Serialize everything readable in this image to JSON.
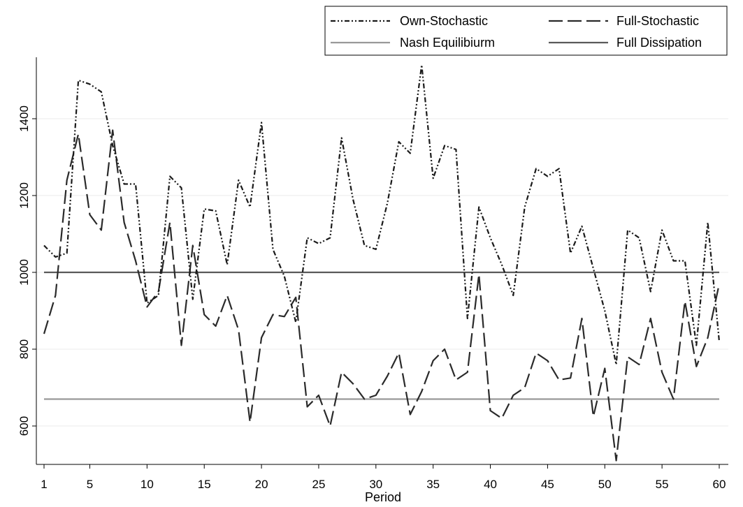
{
  "chart_data": {
    "type": "line",
    "title": "",
    "xlabel": "Period",
    "ylabel": "",
    "xlim": [
      1,
      60
    ],
    "ylim": [
      500,
      1560
    ],
    "x_ticks": [
      1,
      5,
      10,
      15,
      20,
      25,
      30,
      35,
      40,
      45,
      50,
      55,
      60
    ],
    "y_ticks": [
      600,
      800,
      1000,
      1200,
      1400
    ],
    "grid": "horizontal",
    "legend_position": "top-right",
    "x": [
      1,
      2,
      3,
      4,
      5,
      6,
      7,
      8,
      9,
      10,
      11,
      12,
      13,
      14,
      15,
      16,
      17,
      18,
      19,
      20,
      21,
      22,
      23,
      24,
      25,
      26,
      27,
      28,
      29,
      30,
      31,
      32,
      33,
      34,
      35,
      36,
      37,
      38,
      39,
      40,
      41,
      42,
      43,
      44,
      45,
      46,
      47,
      48,
      49,
      50,
      51,
      52,
      53,
      54,
      55,
      56,
      57,
      58,
      59,
      60
    ],
    "series": [
      {
        "name": "Own-Stochastic",
        "style": "dash-dot-dot",
        "color": "#1a1a1a",
        "values": [
          1070,
          1040,
          1050,
          1500,
          1490,
          1470,
          1330,
          1230,
          1230,
          920,
          940,
          1250,
          1220,
          930,
          1165,
          1160,
          1020,
          1240,
          1170,
          1390,
          1060,
          990,
          870,
          1090,
          1075,
          1090,
          1350,
          1190,
          1070,
          1060,
          1180,
          1340,
          1310,
          1540,
          1245,
          1330,
          1320,
          880,
          1170,
          1090,
          1020,
          940,
          1170,
          1270,
          1250,
          1270,
          1050,
          1120,
          1010,
          900,
          760,
          1110,
          1090,
          950,
          1110,
          1030,
          1030,
          810,
          1130,
          820
        ]
      },
      {
        "name": "Full-Stochastic",
        "style": "long-dash",
        "color": "#2a2a2a",
        "values": [
          840,
          940,
          1240,
          1360,
          1150,
          1110,
          1370,
          1130,
          1030,
          910,
          950,
          1130,
          810,
          1070,
          890,
          860,
          940,
          850,
          610,
          830,
          890,
          885,
          935,
          650,
          680,
          600,
          740,
          710,
          670,
          680,
          730,
          790,
          630,
          690,
          770,
          800,
          720,
          740,
          995,
          640,
          620,
          680,
          700,
          790,
          770,
          720,
          725,
          880,
          625,
          750,
          510,
          780,
          760,
          880,
          740,
          670,
          925,
          755,
          830,
          970
        ]
      },
      {
        "name": "Nash Equilibiurm",
        "style": "solid",
        "color": "#999999",
        "values": [
          670,
          670,
          670,
          670,
          670,
          670,
          670,
          670,
          670,
          670,
          670,
          670,
          670,
          670,
          670,
          670,
          670,
          670,
          670,
          670,
          670,
          670,
          670,
          670,
          670,
          670,
          670,
          670,
          670,
          670,
          670,
          670,
          670,
          670,
          670,
          670,
          670,
          670,
          670,
          670,
          670,
          670,
          670,
          670,
          670,
          670,
          670,
          670,
          670,
          670,
          670,
          670,
          670,
          670,
          670,
          670,
          670,
          670,
          670,
          670
        ]
      },
      {
        "name": "Full Dissipation",
        "style": "solid",
        "color": "#5a5a5a",
        "values": [
          1000,
          1000,
          1000,
          1000,
          1000,
          1000,
          1000,
          1000,
          1000,
          1000,
          1000,
          1000,
          1000,
          1000,
          1000,
          1000,
          1000,
          1000,
          1000,
          1000,
          1000,
          1000,
          1000,
          1000,
          1000,
          1000,
          1000,
          1000,
          1000,
          1000,
          1000,
          1000,
          1000,
          1000,
          1000,
          1000,
          1000,
          1000,
          1000,
          1000,
          1000,
          1000,
          1000,
          1000,
          1000,
          1000,
          1000,
          1000,
          1000,
          1000,
          1000,
          1000,
          1000,
          1000,
          1000,
          1000,
          1000,
          1000,
          1000,
          1000
        ]
      }
    ]
  }
}
